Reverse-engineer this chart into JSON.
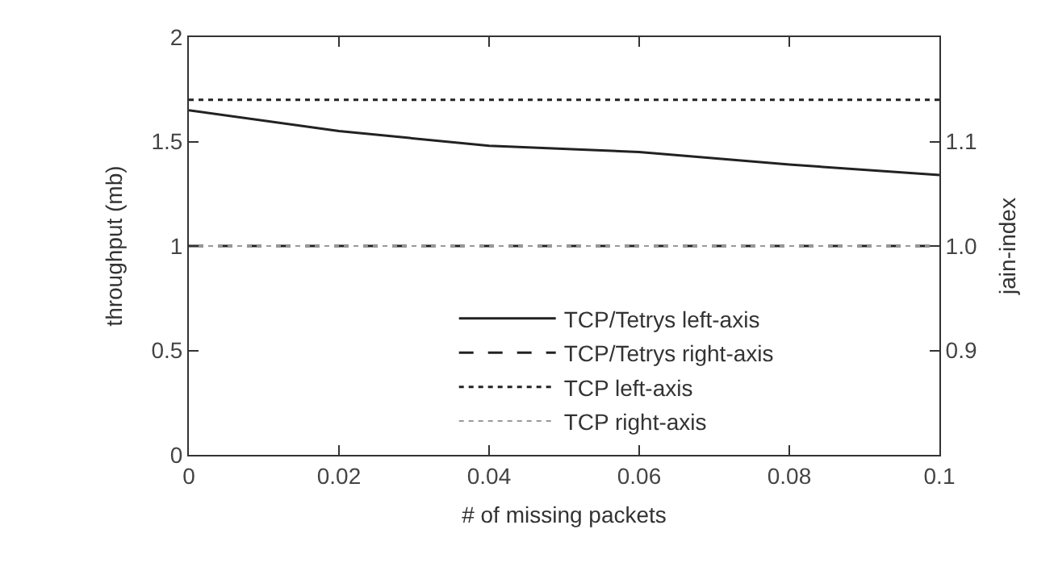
{
  "chart_data": {
    "type": "line",
    "xlabel": "# of missing packets",
    "ylabel": "throughput (mb)",
    "y2label": "jain-index",
    "x": [
      0,
      0.02,
      0.04,
      0.06,
      0.08,
      0.1
    ],
    "series": [
      {
        "name": "TCP/Tetrys left-axis",
        "color": "#222222",
        "line_style": "solid",
        "values": [
          1.65,
          1.55,
          1.48,
          1.45,
          1.39,
          1.34
        ]
      },
      {
        "name": "TCP/Tetrys right-axis",
        "color": "#222222",
        "line_style": "dashed",
        "axis": "y2",
        "values": [
          1.0,
          1.0,
          1.0,
          1.0,
          1.0,
          1.0
        ]
      },
      {
        "name": "TCP left-axis",
        "color": "#222222",
        "line_style": "dotted",
        "values": [
          1.7,
          1.7,
          1.7,
          1.7,
          1.7,
          1.7
        ]
      },
      {
        "name": "TCP right-axis",
        "color": "#999999",
        "line_style": "dotted",
        "axis": "y2",
        "values": [
          1.0,
          1.0,
          1.0,
          1.0,
          1.0,
          1.0
        ]
      }
    ],
    "xlim": [
      0,
      0.1
    ],
    "xticks": [
      0,
      0.02,
      0.04,
      0.06,
      0.08,
      0.1
    ],
    "ylim": [
      0,
      2
    ],
    "yticks": [
      0,
      0.5,
      1,
      1.5,
      2
    ],
    "y2lim": [
      0.8,
      1.2
    ],
    "y2ticks": [
      0.9,
      {
        "value": 1,
        "label": "1.0"
      },
      1.1
    ],
    "grid": false,
    "legend": "bottom right",
    "marker": "none"
  }
}
